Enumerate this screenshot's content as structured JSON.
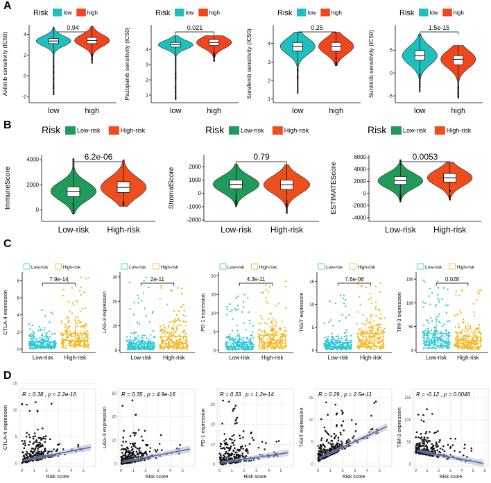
{
  "panel_labels": [
    "A",
    "B",
    "C",
    "D"
  ],
  "colors": {
    "a_low": "#1fbfc0",
    "a_high": "#f2441f",
    "b_low": "#1f9a5b",
    "b_high": "#ee4d1c",
    "c_low": "#2ac7d3",
    "c_high": "#f4b51a",
    "d_point": "#111111",
    "d_line": "#3a5fcd",
    "d_band": "#b8b8b8"
  },
  "chart_data": [
    {
      "id": "A1",
      "type": "violin",
      "legend_title": "Risk",
      "legend": [
        "low",
        "high"
      ],
      "categories": [
        "low",
        "high"
      ],
      "ylabel": "Axitinib sensitivity (IC50)",
      "yticks": [
        -2,
        0,
        2,
        4
      ],
      "ylim": [
        -2.6,
        4.9
      ],
      "pvalue": "0.94",
      "series": [
        {
          "name": "low",
          "median": 3.35,
          "q1": 3.1,
          "q3": 3.6,
          "min": -1.8,
          "max": 4.7
        },
        {
          "name": "high",
          "median": 3.4,
          "q1": 3.1,
          "q3": 3.7,
          "min": 1.2,
          "max": 4.8
        }
      ]
    },
    {
      "id": "A2",
      "type": "violin",
      "legend_title": "Risk",
      "legend": [
        "low",
        "high"
      ],
      "categories": [
        "low",
        "high"
      ],
      "ylabel": "Pazopanib sensitivity (IC50)",
      "yticks": [
        1,
        2,
        3,
        4
      ],
      "ylim": [
        0.5,
        5.6
      ],
      "pvalue": "0.021",
      "series": [
        {
          "name": "low",
          "median": 4.3,
          "q1": 4.15,
          "q3": 4.45,
          "min": 0.7,
          "max": 4.9
        },
        {
          "name": "high",
          "median": 4.45,
          "q1": 4.25,
          "q3": 4.65,
          "min": 3.2,
          "max": 4.9
        }
      ]
    },
    {
      "id": "A3",
      "type": "violin",
      "legend_title": "Risk",
      "legend": [
        "low",
        "high"
      ],
      "categories": [
        "low",
        "high"
      ],
      "ylabel": "Sorafenib sensitivity (IC50)",
      "yticks": [
        1,
        2,
        3,
        4
      ],
      "ylim": [
        0.8,
        5.0
      ],
      "pvalue": "0.25",
      "series": [
        {
          "name": "low",
          "median": 3.85,
          "q1": 3.6,
          "q3": 4.05,
          "min": 1.3,
          "max": 4.6
        },
        {
          "name": "high",
          "median": 3.85,
          "q1": 3.6,
          "q3": 4.05,
          "min": 2.8,
          "max": 4.6
        }
      ]
    },
    {
      "id": "A4",
      "type": "violin",
      "legend_title": "Risk",
      "legend": [
        "low",
        "high"
      ],
      "categories": [
        "low",
        "high"
      ],
      "ylabel": "Sunitinib sensitivity (IC50)",
      "yticks": [
        -5,
        0,
        5
      ],
      "ylim": [
        -6.5,
        10.5
      ],
      "pvalue": "1.5e-15",
      "series": [
        {
          "name": "low",
          "median": 3.8,
          "q1": 2.8,
          "q3": 4.9,
          "min": -4.2,
          "max": 8.5
        },
        {
          "name": "high",
          "median": 3.0,
          "q1": 1.8,
          "q3": 3.8,
          "min": -5.5,
          "max": 6.0
        }
      ]
    },
    {
      "id": "B1",
      "type": "violin",
      "legend_title": "Risk",
      "legend": [
        "Low-risk",
        "High-risk"
      ],
      "categories": [
        "Low-risk",
        "High-risk"
      ],
      "ylabel": "ImmuneScore",
      "yticks": [
        0,
        2000,
        4000
      ],
      "ylim": [
        -900,
        4400
      ],
      "pvalue": "6.2e-06",
      "series": [
        {
          "name": "Low-risk",
          "median": 1500,
          "q1": 1080,
          "q3": 1850,
          "min": -300,
          "max": 4100
        },
        {
          "name": "High-risk",
          "median": 1800,
          "q1": 1400,
          "q3": 2250,
          "min": 300,
          "max": 4000
        }
      ]
    },
    {
      "id": "B2",
      "type": "violin",
      "legend_title": "Risk",
      "legend": [
        "Low-risk",
        "High-risk"
      ],
      "categories": [
        "Low-risk",
        "High-risk"
      ],
      "ylabel": "StromalScore",
      "yticks": [
        -2000,
        -1000,
        0,
        1000,
        2000
      ],
      "ylim": [
        -2100,
        2900
      ],
      "pvalue": "0.79",
      "series": [
        {
          "name": "Low-risk",
          "median": 680,
          "q1": 350,
          "q3": 1000,
          "min": -1000,
          "max": 2200
        },
        {
          "name": "High-risk",
          "median": 650,
          "q1": 300,
          "q3": 1000,
          "min": -1500,
          "max": 2150
        }
      ]
    },
    {
      "id": "B3",
      "type": "violin",
      "legend_title": "Risk",
      "legend": [
        "Low-risk",
        "High-risk"
      ],
      "categories": [
        "Low-risk",
        "High-risk"
      ],
      "ylabel": "ESTIMATEScore",
      "yticks": [
        -4000,
        -2000,
        0,
        2000,
        4000,
        6000
      ],
      "ylim": [
        -4600,
        6400
      ],
      "pvalue": "0.0053",
      "series": [
        {
          "name": "Low-risk",
          "median": 2100,
          "q1": 1500,
          "q3": 2800,
          "min": -1400,
          "max": 5600
        },
        {
          "name": "High-risk",
          "median": 2600,
          "q1": 1900,
          "q3": 3300,
          "min": -1100,
          "max": 5200
        }
      ]
    },
    {
      "id": "C1",
      "type": "box-jitter",
      "legend": [
        "Low-risk",
        "High-risk"
      ],
      "categories": [
        "Low-risk",
        "High-risk"
      ],
      "ylabel": "CTLA-4 expression",
      "yticks": [
        0,
        2,
        4,
        6,
        8
      ],
      "ylim": [
        -0.4,
        9
      ],
      "pvalue": "7.9e-14",
      "series": [
        {
          "name": "Low-risk",
          "median": 0.4,
          "q1": 0.1,
          "q3": 0.8,
          "max": 4.6
        },
        {
          "name": "High-risk",
          "median": 1.0,
          "q1": 0.4,
          "q3": 1.8,
          "max": 8.5
        }
      ]
    },
    {
      "id": "C2",
      "type": "box-jitter",
      "legend": [
        "Low-risk",
        "High-risk"
      ],
      "categories": [
        "Low-risk",
        "High-risk"
      ],
      "ylabel": "LAG-3 expression",
      "yticks": [
        0,
        10,
        20,
        30
      ],
      "ylim": [
        -1,
        32
      ],
      "pvalue": "2e-11",
      "series": [
        {
          "name": "Low-risk",
          "median": 1.2,
          "q1": 0.3,
          "q3": 2.8,
          "max": 30
        },
        {
          "name": "High-risk",
          "median": 2.8,
          "q1": 1.1,
          "q3": 5.7,
          "max": 28
        }
      ]
    },
    {
      "id": "C3",
      "type": "box-jitter",
      "legend": [
        "Low-risk",
        "High-risk"
      ],
      "categories": [
        "Low-risk",
        "High-risk"
      ],
      "ylabel": "PD-1 expression",
      "yticks": [
        0,
        5,
        10,
        15,
        20
      ],
      "ylim": [
        -0.6,
        21
      ],
      "pvalue": "4.3e-11",
      "series": [
        {
          "name": "Low-risk",
          "median": 1.0,
          "q1": 0.3,
          "q3": 2.0,
          "max": 15
        },
        {
          "name": "High-risk",
          "median": 2.0,
          "q1": 0.9,
          "q3": 4.1,
          "max": 19
        }
      ]
    },
    {
      "id": "C4",
      "type": "box-jitter",
      "legend": [
        "Low-risk",
        "High-risk"
      ],
      "categories": [
        "Low-risk",
        "High-risk"
      ],
      "ylabel": "TIGIT expression",
      "yticks": [
        0,
        5,
        10,
        15
      ],
      "ylim": [
        -0.5,
        17
      ],
      "pvalue": "7.6e-08",
      "series": [
        {
          "name": "Low-risk",
          "median": 0.9,
          "q1": 0.4,
          "q3": 1.7,
          "max": 12
        },
        {
          "name": "High-risk",
          "median": 1.8,
          "q1": 0.8,
          "q3": 3.6,
          "max": 16
        }
      ]
    },
    {
      "id": "C5",
      "type": "box-jitter",
      "legend": [
        "Low-risk",
        "High-risk"
      ],
      "categories": [
        "Low-risk",
        "High-risk"
      ],
      "ylabel": "TIM-3 expression",
      "yticks": [
        0,
        50,
        100,
        150
      ],
      "ylim": [
        -5,
        165
      ],
      "pvalue": "0.028",
      "series": [
        {
          "name": "Low-risk",
          "median": 20,
          "q1": 10,
          "q3": 35,
          "max": 150
        },
        {
          "name": "High-risk",
          "median": 15,
          "q1": 7,
          "q3": 28,
          "max": 130
        }
      ]
    },
    {
      "id": "D1",
      "type": "scatter",
      "xlabel": "Risk score",
      "ylabel": "CTLA-4 expression",
      "xticks": [
        0,
        1,
        2,
        3,
        4,
        5
      ],
      "yticks": [
        0,
        5,
        10,
        15
      ],
      "xlim": [
        -0.2,
        6
      ],
      "ylim": [
        -0.5,
        14
      ],
      "stat": "R = 0.38 , p < 2.2e-16",
      "slope": 0.45,
      "intercept": 0.55
    },
    {
      "id": "D2",
      "type": "scatter",
      "xlabel": "Risk score",
      "ylabel": "LAG-3 expression",
      "xticks": [
        0,
        1,
        2,
        3,
        4,
        5
      ],
      "yticks": [
        0,
        20,
        40,
        60
      ],
      "xlim": [
        -0.2,
        6
      ],
      "ylim": [
        -2,
        64
      ],
      "stat": "R = 0.35 , p = 4.9e-16",
      "slope": 2.0,
      "intercept": 1.5
    },
    {
      "id": "D3",
      "type": "scatter",
      "xlabel": "Risk score",
      "ylabel": "PD-1 expression",
      "xticks": [
        0,
        1,
        2,
        3,
        4,
        5
      ],
      "yticks": [
        0,
        10,
        20,
        30
      ],
      "xlim": [
        -0.2,
        6
      ],
      "ylim": [
        -1,
        38
      ],
      "stat": "R = 0.33 , p = 1.2e-14",
      "slope": 0.9,
      "intercept": 0.8
    },
    {
      "id": "D4",
      "type": "scatter",
      "xlabel": "Risk score",
      "ylabel": "TIGIT expression",
      "xticks": [
        0,
        1,
        2,
        3,
        4,
        5
      ],
      "yticks": [
        0,
        5,
        10,
        15
      ],
      "xlim": [
        -0.2,
        6
      ],
      "ylim": [
        -0.5,
        17
      ],
      "stat": "R = 0.29 , p = 2.5e-11",
      "slope": 1.3,
      "intercept": 1.2
    },
    {
      "id": "D5",
      "type": "scatter",
      "xlabel": "Risk score",
      "ylabel": "TIM-3 expression",
      "xticks": [
        0,
        1,
        2,
        3,
        4,
        5,
        6
      ],
      "yticks": [
        0,
        50,
        100,
        150
      ],
      "xlim": [
        -0.2,
        6.3
      ],
      "ylim": [
        -5,
        170
      ],
      "stat": "R = -0.12 , p = 0.0046",
      "slope": -5.0,
      "intercept": 31
    }
  ]
}
